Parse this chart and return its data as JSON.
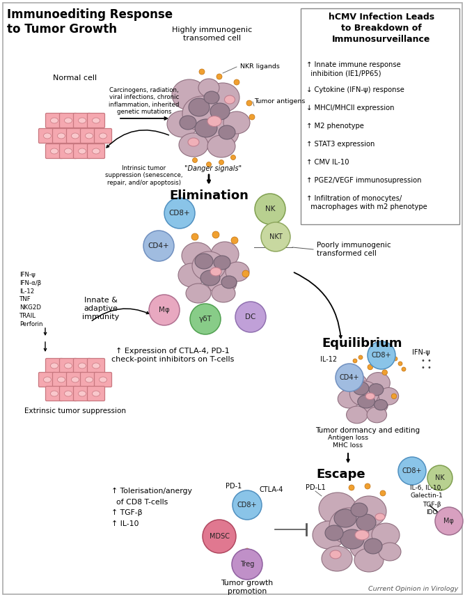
{
  "title": "Immunoediting Response\nto Tumor Growth",
  "bg_color": "#ffffff",
  "hcmv_title": "hCMV Infection Leads\nto Breakdown of\nImmunosurveillance",
  "hcmv_points": [
    "↑ Innate immune response\n  inhibition (IE1/PP65)",
    "↓ Cytokine (IFN-ψ) response",
    "↓ MHCI/MHCII expression",
    "↑ M2 phenotype",
    "↑ STAT3 expression",
    "↑ CMV IL-10",
    "↑ PGE2/VEGF immunosupression",
    "↑ Infiltration of monocytes/\n  macrophages with m2 phenotype"
  ],
  "normal_cell_label": "Normal cell",
  "highly_immunogenic_label": "Highly immunogenic\ntransomed cell",
  "elimination_label": "Elimination",
  "equilibrium_label": "Equilibrium",
  "escape_label": "Escape",
  "poorly_immunogenic_label": "Poorly immunogenic\ntransformed cell",
  "extrinsic_suppression_label": "Extrinsic tumor suppression",
  "tumor_dormancy_label": "Tumor dormancy and editing",
  "tumor_growth_label": "Tumor growth\npromotion",
  "innate_adaptive_label": "Innate &\nadaptive\nimmunity",
  "carcinogens_text": "Carcinogens, radiation,\nviral infections, chronic\ninflammation, inherited\ngenetic mutations",
  "intrinsic_text": "Intrinsic tumor\nsuppression (senescence,\nrepair, and/or apoptosis)",
  "ifn_text": "IFN-ψ\nIFN-α/β\nIL-12\nTNF\nNKG2D\nTRAIL\nPerforin",
  "ctla4_text": "↑ Expression of CTLA-4, PD-1\ncheck-point inhibitors on T-cells",
  "tolerisation_text": "↑ Tolerisation/anergy\n  of CD8 T-cells\n↑ TGF-β\n↑ IL-10",
  "antigen_loss_text": "Antigen loss\nMHC loss",
  "nkr_ligands_text": "NKR ligands",
  "tumor_antigens_text": "Tumor antigens",
  "danger_signals_text": "\"Danger signals\"",
  "il12_text": "IL-12",
  "ifn_psi_text": "IFN-ψ",
  "pd1_text": "PD-1",
  "ctla4_cell_text": "CTLA-4",
  "pdl1_text": "PD-L1",
  "il6_text": "IL-6, IL-10,\nGalectin-1",
  "tgfb_text": "TGF-β\nIDO",
  "current_opinion": "Current Opinion in Virology",
  "colors": {
    "normal_cell_fill": "#f5a8b0",
    "normal_cell_border": "#c87880",
    "normal_cell_nucleus": "#f9c8cc",
    "tumor_outer_fill": "#c8aab8",
    "tumor_outer_border": "#907080",
    "tumor_inner_fill": "#9a8090",
    "tumor_inner_border": "#706070",
    "tumor_dark_fill": "#807080",
    "tumor_dark_border": "#605060",
    "pink_embedded_fill": "#f0b0b8",
    "pink_embedded_border": "#c08090",
    "cd8_fill": "#8ac4e8",
    "cd8_border": "#5090c0",
    "cd4_fill": "#a0bce0",
    "cd4_border": "#7090c0",
    "nk_fill": "#b8d090",
    "nk_border": "#80a050",
    "nkt_fill": "#c8d8a0",
    "nkt_border": "#90a860",
    "mphi_fill": "#e8a8c0",
    "mphi_border": "#b07090",
    "gammadt_fill": "#88cc88",
    "gammadt_border": "#50a050",
    "dc_fill": "#c0a0d8",
    "dc_border": "#9070b0",
    "mdsc_fill": "#e07890",
    "mdsc_border": "#b04860",
    "treg_fill": "#c090c8",
    "treg_border": "#9060a0",
    "mphi_escape_fill": "#d8a0c0",
    "mphi_escape_border": "#a07090",
    "orange_dot": "#f0a030",
    "orange_dot_border": "#c07010"
  }
}
